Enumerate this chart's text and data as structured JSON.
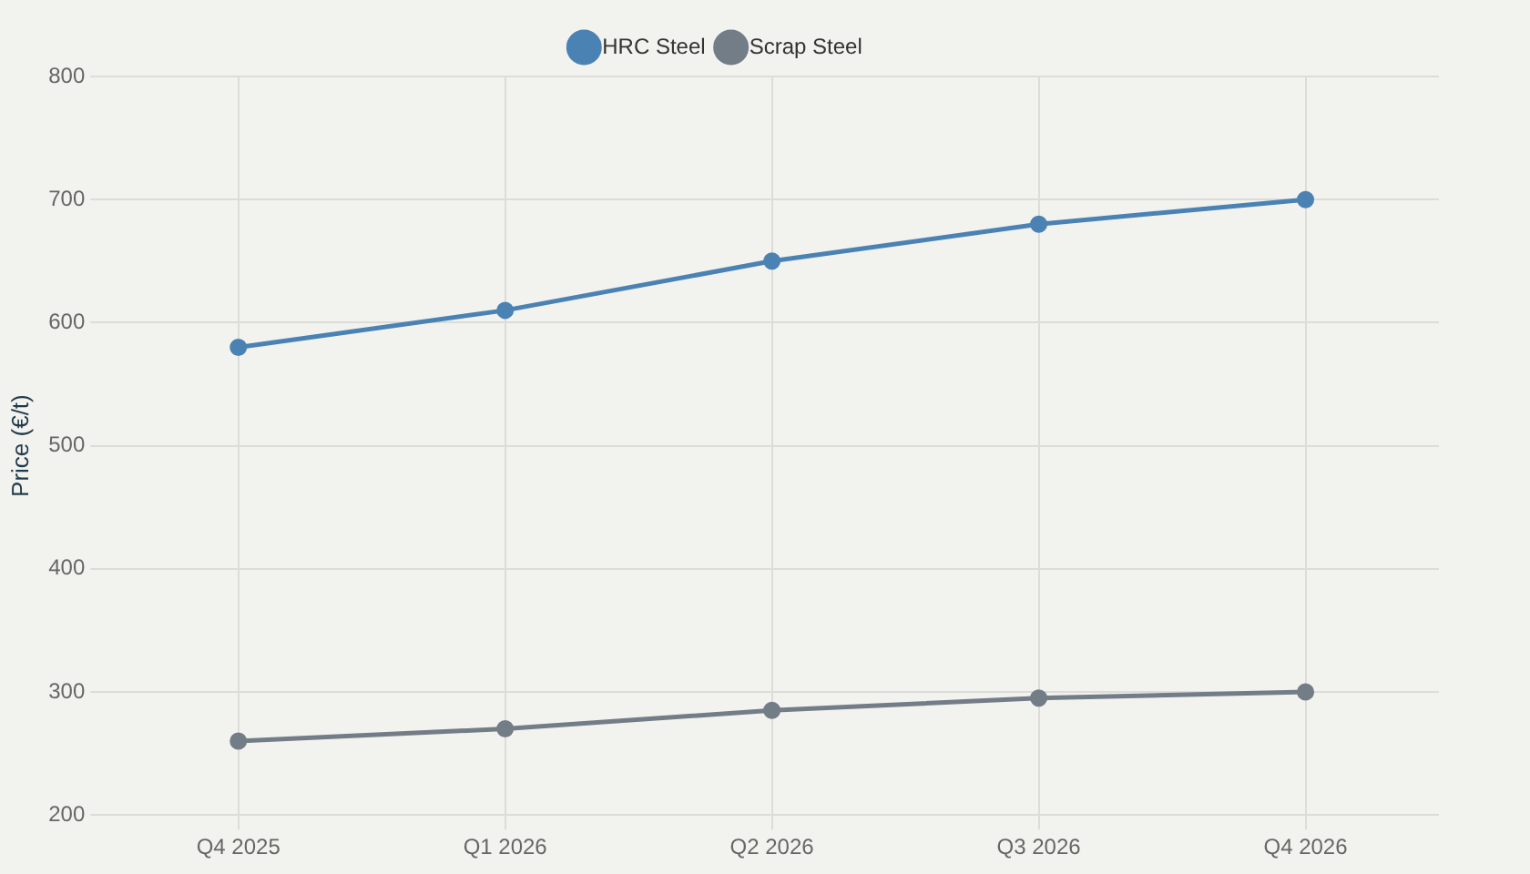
{
  "chart_data": {
    "type": "line",
    "ylabel": "Price (€/t)",
    "categories": [
      "Q4 2025",
      "Q1 2026",
      "Q2 2026",
      "Q3 2026",
      "Q4 2026"
    ],
    "series": [
      {
        "name": "HRC Steel",
        "color": "#4a82b4",
        "values": [
          580,
          610,
          650,
          680,
          700
        ]
      },
      {
        "name": "Scrap Steel",
        "color": "#737d87",
        "values": [
          260,
          270,
          285,
          295,
          300
        ]
      }
    ],
    "ylim": [
      200,
      800
    ],
    "yticks": [
      200,
      300,
      400,
      500,
      600,
      700,
      800
    ],
    "grid": true,
    "legend": "top",
    "marker": "circle",
    "line_style": "solid"
  }
}
